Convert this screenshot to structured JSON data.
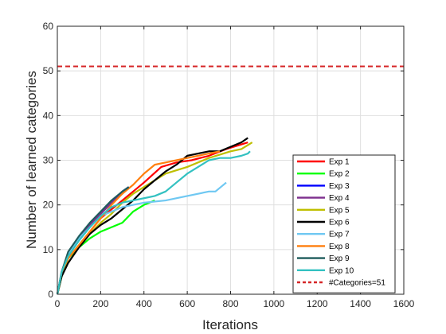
{
  "chart_data": {
    "type": "line",
    "title": "",
    "xlabel": "Iterations",
    "ylabel": "Number of learned categories",
    "xlim": [
      0,
      1600
    ],
    "ylim": [
      0,
      60
    ],
    "xticks": [
      0,
      200,
      400,
      600,
      800,
      1000,
      1200,
      1400,
      1600
    ],
    "yticks": [
      0,
      10,
      20,
      30,
      40,
      50,
      60
    ],
    "grid": true,
    "legend_position": "bottom-right",
    "reference_line": {
      "name": "#Categories=51",
      "value": 51,
      "color": "#d62728",
      "style": "dashed"
    },
    "series": [
      {
        "name": "Exp 1",
        "color": "#ff0000",
        "x": [
          0,
          20,
          50,
          100,
          150,
          200,
          250,
          300,
          350,
          400,
          480,
          550,
          620,
          700,
          780,
          880
        ],
        "y": [
          0,
          5,
          8,
          11,
          14,
          17,
          19,
          21,
          23,
          25,
          28.5,
          29.5,
          30,
          31,
          32.5,
          34
        ]
      },
      {
        "name": "Exp 2",
        "color": "#00ff00",
        "x": [
          0,
          20,
          50,
          100,
          150,
          200,
          250,
          300,
          350,
          400,
          450
        ],
        "y": [
          0,
          4,
          8,
          10.5,
          12.5,
          14,
          15,
          16,
          18.5,
          20,
          21
        ]
      },
      {
        "name": "Exp 3",
        "color": "#0000ff",
        "x": [
          0,
          20,
          50,
          100,
          150,
          200,
          250,
          300,
          330
        ],
        "y": [
          0,
          5,
          9,
          12.5,
          15.5,
          18,
          20.5,
          23,
          24
        ]
      },
      {
        "name": "Exp 4",
        "color": "#7e2f8e",
        "x": [
          0,
          20,
          50,
          100,
          150,
          200,
          250,
          300,
          330
        ],
        "y": [
          0,
          5,
          9,
          12.5,
          15.5,
          18,
          20.5,
          22.5,
          24
        ]
      },
      {
        "name": "Exp 5",
        "color": "#bfbf00",
        "x": [
          0,
          20,
          50,
          100,
          150,
          200,
          250,
          300,
          350,
          400,
          500,
          600,
          700,
          800,
          850,
          900
        ],
        "y": [
          0,
          4,
          8,
          11,
          13.5,
          16,
          18,
          20.5,
          22.5,
          24,
          27,
          28.5,
          30.5,
          32,
          32.5,
          34
        ]
      },
      {
        "name": "Exp 6",
        "color": "#000000",
        "x": [
          0,
          20,
          50,
          100,
          150,
          200,
          250,
          300,
          350,
          400,
          450,
          500,
          550,
          600,
          650,
          700,
          750,
          800,
          850,
          880
        ],
        "y": [
          0,
          4,
          7,
          10.5,
          13.5,
          15.5,
          17,
          19,
          21,
          23.5,
          25.5,
          27.5,
          29,
          31,
          31.5,
          32,
          32,
          33,
          34,
          35
        ]
      },
      {
        "name": "Exp 7",
        "color": "#6fc8f2",
        "x": [
          0,
          20,
          50,
          100,
          150,
          200,
          300,
          400,
          500,
          600,
          700,
          730,
          780
        ],
        "y": [
          0,
          5,
          9,
          12.5,
          15,
          17.5,
          19.5,
          20.5,
          21,
          22,
          23,
          23,
          25
        ]
      },
      {
        "name": "Exp 8",
        "color": "#ff7f0e",
        "x": [
          0,
          20,
          50,
          100,
          150,
          200,
          250,
          300,
          350,
          400,
          450,
          500,
          550,
          600,
          650,
          700,
          750
        ],
        "y": [
          0,
          5,
          8,
          11,
          14,
          17,
          20,
          22.5,
          24.5,
          27,
          29,
          29.5,
          30,
          30.5,
          31,
          31.5,
          32
        ]
      },
      {
        "name": "Exp 9",
        "color": "#1f5c5c",
        "x": [
          0,
          20,
          50,
          100,
          150,
          200,
          250,
          300,
          330
        ],
        "y": [
          0,
          5,
          9.5,
          13,
          16,
          18.5,
          21,
          23,
          24
        ]
      },
      {
        "name": "Exp 10",
        "color": "#33c1c1",
        "x": [
          0,
          20,
          50,
          100,
          150,
          200,
          250,
          300,
          350,
          400,
          450,
          500,
          550,
          600,
          650,
          700,
          750,
          800,
          850,
          880,
          890
        ],
        "y": [
          0,
          5,
          8.5,
          12,
          15,
          17.5,
          19.5,
          20.5,
          21,
          21.5,
          22,
          23,
          25,
          27,
          28.5,
          30,
          30.5,
          30.5,
          31,
          31.5,
          32
        ]
      }
    ]
  }
}
